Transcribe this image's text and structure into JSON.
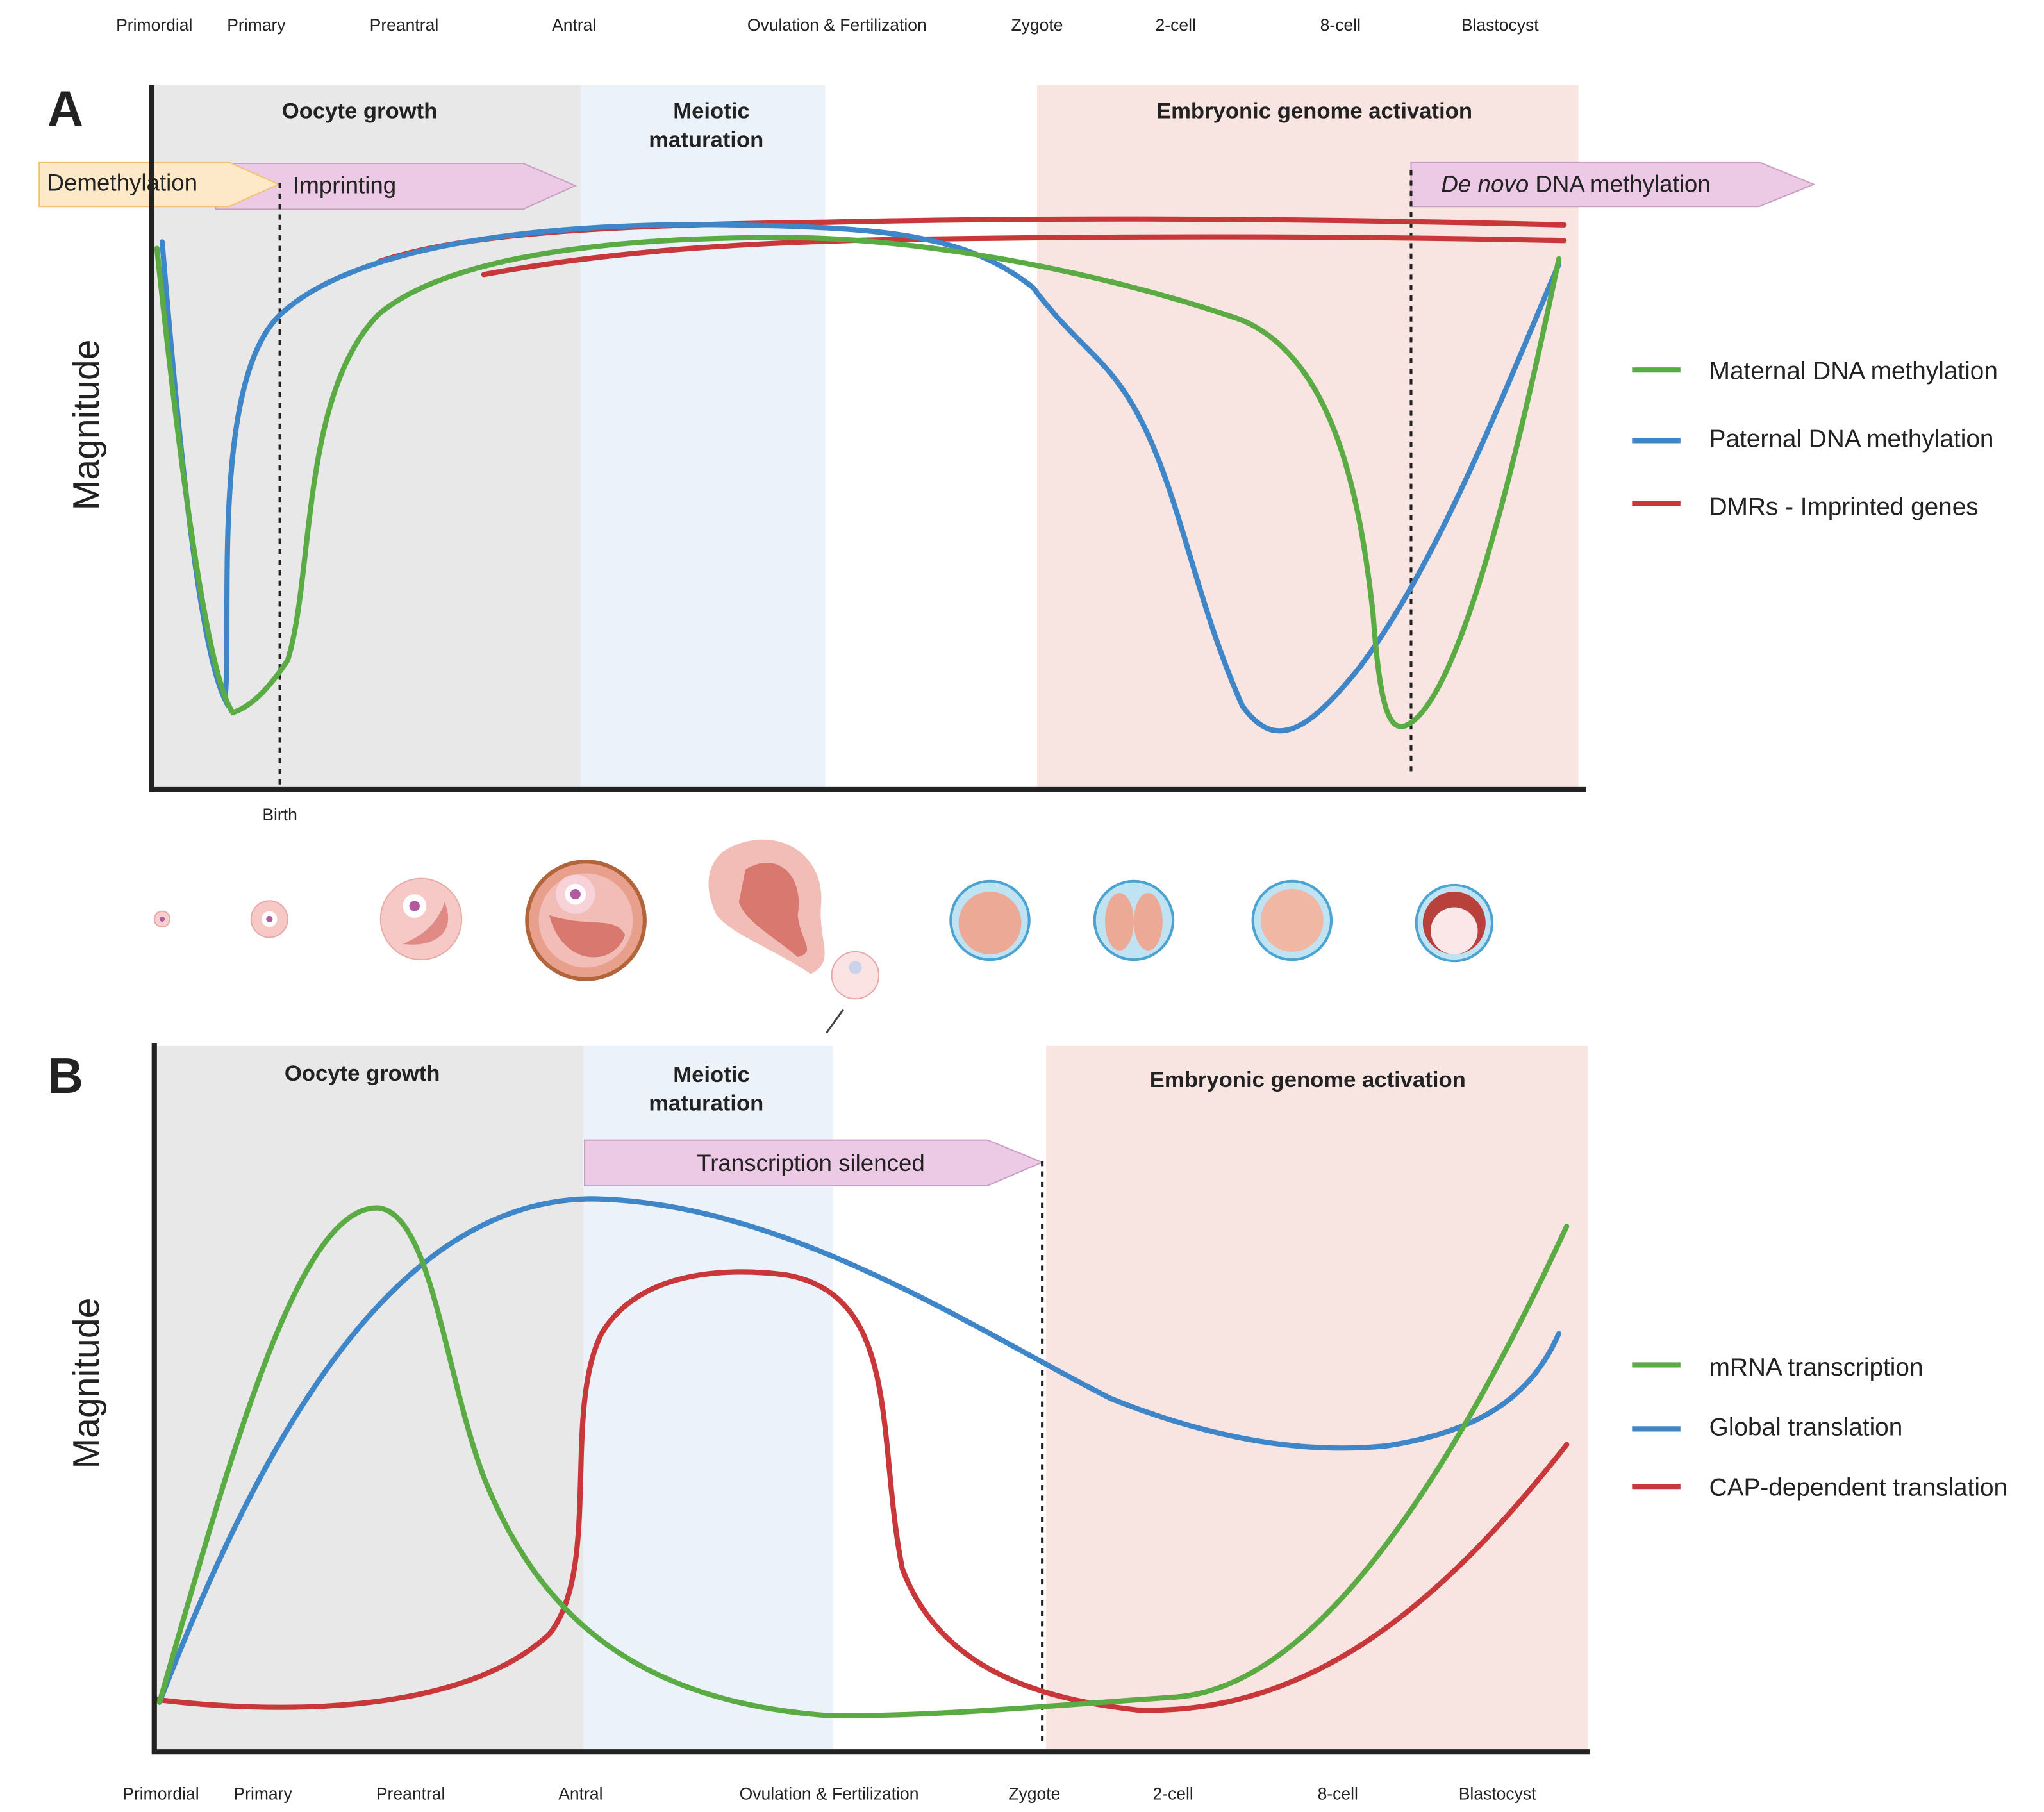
{
  "panel_a": {
    "label": "A",
    "stages": [
      "Primordial",
      "Primary",
      "Preantral",
      "Antral",
      "Ovulation  & Fertilization",
      "Zygote",
      "2-cell",
      "8-cell",
      "Blastocyst"
    ],
    "regions": {
      "oocyte_growth": "Oocyte growth",
      "meiotic_maturation": [
        "Meiotic",
        "maturation"
      ],
      "genome_activation": "Embryonic genome  activation"
    },
    "arrows": {
      "demethylation": "Demethylation",
      "imprinting": "Imprinting",
      "de_novo": {
        "italic": "De novo",
        "rest": " DNA methylation"
      }
    },
    "y_label": "Magnitude",
    "marker": "Birth",
    "legend": [
      "Maternal DNA methylation",
      "Paternal DNA methylation",
      "DMRs - Imprinted genes"
    ]
  },
  "panel_b": {
    "label": "B",
    "stages": [
      "Primordial",
      "Primary",
      "Preantral",
      "Antral",
      "Ovulation  & Fertilization",
      "Zygote",
      "2-cell",
      "8-cell",
      "Blastocyst"
    ],
    "regions": {
      "oocyte_growth": "Oocyte growth",
      "meiotic_maturation": [
        "Meiotic",
        "maturation"
      ],
      "genome_activation": "Embryonic genome activation"
    },
    "arrows": {
      "silenced": "Transcription silenced"
    },
    "y_label": "Magnitude",
    "legend": [
      "mRNA transcription",
      "Global translation",
      "CAP-dependent translation"
    ]
  }
}
